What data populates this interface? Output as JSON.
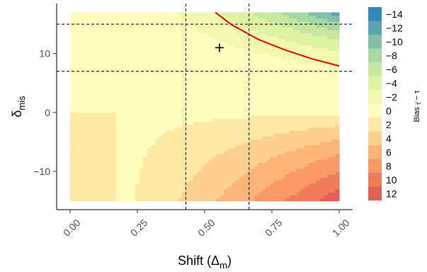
{
  "chart_data": {
    "type": "heatmap",
    "title": "",
    "x_axis": {
      "label_main": "Shift (Δ",
      "label_sub": "m",
      "label_close": ")",
      "range": [
        -0.05,
        1.05
      ],
      "ticks": [
        0.0,
        0.25,
        0.5,
        0.75,
        1.0
      ],
      "tick_labels": [
        "0.00",
        "0.25",
        "0.50",
        "0.75",
        "1.00"
      ]
    },
    "y_axis": {
      "label_main": "δ",
      "label_sub": "mis",
      "range": [
        -16.5,
        18.5
      ],
      "ticks": [
        -10,
        0,
        10
      ],
      "tick_labels": [
        "−10",
        "0",
        "10"
      ]
    },
    "data_extent": {
      "x": [
        0,
        1
      ],
      "y": [
        -15,
        17
      ]
    },
    "color_scale": {
      "title_main": "Bias",
      "title_sub": "τ̂",
      "title_suffix": "− τ",
      "levels": [
        {
          "label": "−14",
          "color": "#3288bd"
        },
        {
          "label": "−12",
          "color": "#5aa3b0"
        },
        {
          "label": "−10",
          "color": "#80bfa8"
        },
        {
          "label": "−8",
          "color": "#a7d8a3"
        },
        {
          "label": "−6",
          "color": "#c6e7a0"
        },
        {
          "label": "−4",
          "color": "#dff1a3"
        },
        {
          "label": "−2",
          "color": "#f2f8b0"
        },
        {
          "label": "0",
          "color": "#fffebf"
        },
        {
          "label": "2",
          "color": "#fee8a5"
        },
        {
          "label": "4",
          "color": "#fdd08e"
        },
        {
          "label": "6",
          "color": "#fcb577"
        },
        {
          "label": "8",
          "color": "#f99a66"
        },
        {
          "label": "10",
          "color": "#f07c5c"
        },
        {
          "label": "12",
          "color": "#e35f57"
        }
      ]
    },
    "reference_lines": {
      "vertical_x": [
        0.43,
        0.665
      ],
      "horizontal_y": [
        15,
        7
      ]
    },
    "marker": {
      "x": 0.555,
      "y": 11,
      "symbol": "+"
    },
    "zero_bias_curve": {
      "color": "#e00000",
      "x": [
        0.54,
        0.6,
        0.7,
        0.8,
        0.9,
        1.0
      ],
      "y": [
        17,
        14.9,
        12.4,
        10.6,
        9.1,
        7.9
      ]
    }
  }
}
